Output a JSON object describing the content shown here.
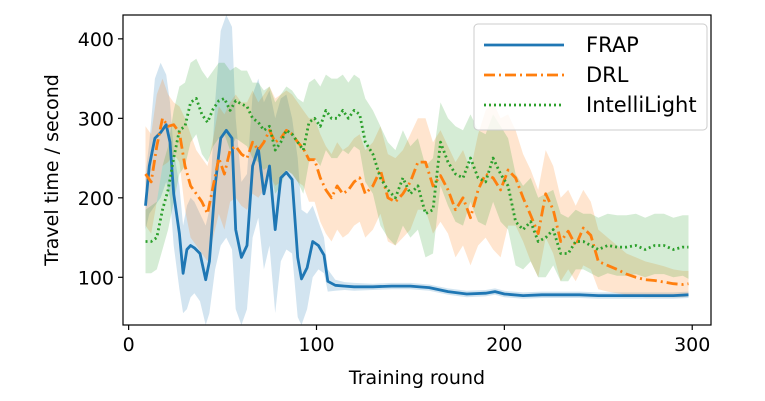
{
  "chart_data": {
    "type": "line",
    "xlabel": "Training round",
    "ylabel": "Travel time / second",
    "xlim": [
      -3,
      310
    ],
    "ylim": [
      40,
      430
    ],
    "xticks": [
      0,
      100,
      200,
      300
    ],
    "yticks": [
      100,
      200,
      300,
      400
    ],
    "grid": false,
    "legend_position": "top-right",
    "series": [
      {
        "name": "FRAP",
        "color": "#1f77b4",
        "style": "solid",
        "x": [
          9,
          11,
          14,
          17,
          20,
          22,
          24,
          27,
          29,
          31,
          33,
          35,
          38,
          41,
          43,
          46,
          49,
          52,
          55,
          57,
          60,
          63,
          66,
          69,
          72,
          75,
          78,
          81,
          84,
          87,
          90,
          92,
          95,
          98,
          101,
          104,
          106,
          110,
          115,
          120,
          130,
          140,
          150,
          160,
          170,
          180,
          190,
          195,
          200,
          210,
          220,
          230,
          240,
          250,
          260,
          270,
          280,
          290,
          298
        ],
        "y": [
          190,
          240,
          275,
          282,
          292,
          270,
          205,
          155,
          105,
          135,
          140,
          137,
          130,
          97,
          120,
          215,
          275,
          285,
          275,
          160,
          125,
          140,
          240,
          262,
          205,
          240,
          160,
          225,
          232,
          223,
          125,
          98,
          112,
          145,
          140,
          128,
          95,
          90,
          89,
          88,
          88,
          89,
          89,
          87,
          82,
          79,
          80,
          82,
          79,
          77,
          78,
          78,
          78,
          77,
          77,
          77,
          77,
          77,
          78
        ],
        "upper": [
          230,
          270,
          350,
          370,
          355,
          320,
          260,
          215,
          165,
          190,
          200,
          195,
          180,
          165,
          185,
          320,
          410,
          430,
          415,
          300,
          220,
          230,
          330,
          350,
          320,
          335,
          300,
          325,
          330,
          300,
          250,
          185,
          180,
          190,
          170,
          150,
          110,
          97,
          94,
          93,
          92,
          93,
          93,
          91,
          86,
          83,
          84,
          86,
          83,
          81,
          82,
          82,
          82,
          81,
          81,
          81,
          81,
          81,
          82
        ],
        "lower": [
          160,
          180,
          190,
          200,
          220,
          200,
          140,
          85,
          55,
          60,
          75,
          80,
          70,
          40,
          55,
          110,
          140,
          150,
          135,
          60,
          40,
          60,
          150,
          175,
          110,
          140,
          55,
          120,
          135,
          130,
          50,
          40,
          60,
          100,
          110,
          105,
          82,
          83,
          84,
          83,
          84,
          85,
          85,
          83,
          78,
          75,
          76,
          78,
          75,
          73,
          74,
          74,
          74,
          73,
          73,
          73,
          73,
          73,
          74
        ]
      },
      {
        "name": "DRL",
        "color": "#ff7f0e",
        "style": "dashdot",
        "x": [
          9,
          12,
          15,
          18,
          21,
          24,
          27,
          30,
          33,
          36,
          39,
          42,
          45,
          48,
          51,
          54,
          57,
          60,
          63,
          66,
          69,
          72,
          75,
          78,
          81,
          84,
          87,
          90,
          93,
          96,
          99,
          102,
          105,
          108,
          111,
          114,
          117,
          120,
          123,
          126,
          130,
          134,
          138,
          142,
          146,
          150,
          154,
          158,
          162,
          166,
          170,
          174,
          178,
          182,
          186,
          190,
          194,
          198,
          202,
          206,
          210,
          214,
          218,
          222,
          226,
          230,
          234,
          238,
          242,
          246,
          250,
          255,
          260,
          265,
          270,
          275,
          280,
          285,
          290,
          295,
          298
        ],
        "y": [
          230,
          220,
          265,
          300,
          290,
          292,
          282,
          240,
          215,
          205,
          195,
          180,
          215,
          250,
          230,
          260,
          265,
          255,
          250,
          270,
          260,
          270,
          285,
          270,
          275,
          285,
          280,
          270,
          262,
          248,
          248,
          225,
          210,
          200,
          215,
          205,
          210,
          220,
          225,
          205,
          215,
          235,
          200,
          195,
          205,
          220,
          245,
          245,
          215,
          228,
          210,
          185,
          200,
          175,
          210,
          230,
          225,
          210,
          235,
          225,
          200,
          178,
          155,
          205,
          185,
          145,
          158,
          140,
          162,
          153,
          120,
          115,
          110,
          104,
          100,
          97,
          96,
          94,
          92,
          91,
          92
        ],
        "upper": [
          290,
          280,
          330,
          350,
          330,
          320,
          315,
          300,
          280,
          260,
          250,
          240,
          275,
          315,
          305,
          320,
          330,
          320,
          320,
          335,
          320,
          330,
          340,
          325,
          330,
          335,
          330,
          320,
          310,
          300,
          300,
          280,
          265,
          255,
          270,
          260,
          265,
          275,
          280,
          260,
          270,
          290,
          255,
          250,
          260,
          280,
          300,
          300,
          270,
          285,
          265,
          245,
          260,
          235,
          280,
          310,
          320,
          300,
          305,
          285,
          255,
          235,
          210,
          260,
          240,
          200,
          210,
          190,
          210,
          195,
          160,
          150,
          140,
          130,
          125,
          120,
          117,
          114,
          110,
          108,
          108
        ],
        "lower": [
          165,
          155,
          195,
          240,
          245,
          255,
          245,
          185,
          150,
          140,
          130,
          120,
          150,
          180,
          160,
          195,
          200,
          190,
          185,
          205,
          200,
          210,
          230,
          215,
          220,
          235,
          230,
          220,
          215,
          195,
          195,
          170,
          155,
          145,
          160,
          150,
          155,
          165,
          170,
          150,
          160,
          180,
          145,
          140,
          150,
          160,
          185,
          185,
          155,
          170,
          155,
          125,
          140,
          115,
          140,
          150,
          135,
          125,
          165,
          165,
          145,
          120,
          100,
          150,
          130,
          95,
          110,
          95,
          115,
          110,
          85,
          82,
          80,
          78,
          76,
          75,
          75,
          75,
          75,
          75,
          76
        ]
      },
      {
        "name": "IntelliLight",
        "color": "#2ca02c",
        "style": "dotted",
        "x": [
          9,
          12,
          15,
          18,
          21,
          24,
          27,
          30,
          33,
          36,
          39,
          42,
          45,
          48,
          51,
          54,
          57,
          60,
          63,
          66,
          69,
          72,
          75,
          78,
          81,
          84,
          87,
          90,
          93,
          96,
          99,
          102,
          105,
          108,
          111,
          114,
          117,
          120,
          123,
          126,
          130,
          134,
          138,
          142,
          146,
          150,
          154,
          158,
          162,
          166,
          170,
          174,
          178,
          182,
          186,
          190,
          194,
          198,
          202,
          206,
          210,
          214,
          218,
          222,
          226,
          230,
          234,
          238,
          242,
          246,
          250,
          255,
          260,
          265,
          270,
          275,
          280,
          285,
          290,
          295,
          298
        ],
        "y": [
          145,
          145,
          150,
          185,
          210,
          250,
          285,
          290,
          320,
          325,
          305,
          295,
          312,
          322,
          325,
          310,
          322,
          318,
          315,
          300,
          295,
          285,
          290,
          260,
          270,
          285,
          280,
          270,
          260,
          295,
          300,
          290,
          310,
          300,
          300,
          310,
          300,
          310,
          305,
          270,
          255,
          225,
          210,
          200,
          225,
          205,
          215,
          180,
          185,
          270,
          245,
          230,
          225,
          250,
          225,
          220,
          250,
          230,
          215,
          170,
          160,
          170,
          145,
          150,
          160,
          130,
          130,
          145,
          145,
          140,
          135,
          140,
          138,
          138,
          140,
          135,
          140,
          140,
          135,
          138,
          138
        ],
        "upper": [
          185,
          190,
          195,
          240,
          265,
          310,
          340,
          345,
          370,
          375,
          360,
          350,
          360,
          370,
          370,
          360,
          365,
          360,
          360,
          345,
          345,
          335,
          340,
          320,
          330,
          340,
          335,
          325,
          320,
          345,
          350,
          340,
          355,
          350,
          350,
          355,
          345,
          355,
          350,
          325,
          310,
          290,
          270,
          260,
          285,
          265,
          275,
          240,
          250,
          320,
          300,
          290,
          285,
          305,
          285,
          280,
          305,
          290,
          275,
          230,
          215,
          225,
          200,
          205,
          210,
          180,
          175,
          185,
          180,
          180,
          175,
          180,
          178,
          178,
          180,
          175,
          180,
          180,
          175,
          178,
          178
        ],
        "lower": [
          105,
          105,
          110,
          135,
          160,
          195,
          230,
          240,
          270,
          280,
          255,
          245,
          265,
          275,
          280,
          260,
          275,
          270,
          265,
          250,
          245,
          235,
          240,
          205,
          215,
          235,
          230,
          220,
          205,
          245,
          250,
          240,
          260,
          250,
          250,
          260,
          255,
          265,
          260,
          220,
          205,
          165,
          150,
          140,
          165,
          150,
          160,
          125,
          130,
          215,
          190,
          170,
          165,
          195,
          170,
          165,
          195,
          170,
          160,
          115,
          110,
          120,
          100,
          100,
          115,
          95,
          95,
          110,
          110,
          105,
          100,
          105,
          102,
          102,
          104,
          100,
          104,
          104,
          100,
          102,
          98
        ]
      }
    ]
  }
}
